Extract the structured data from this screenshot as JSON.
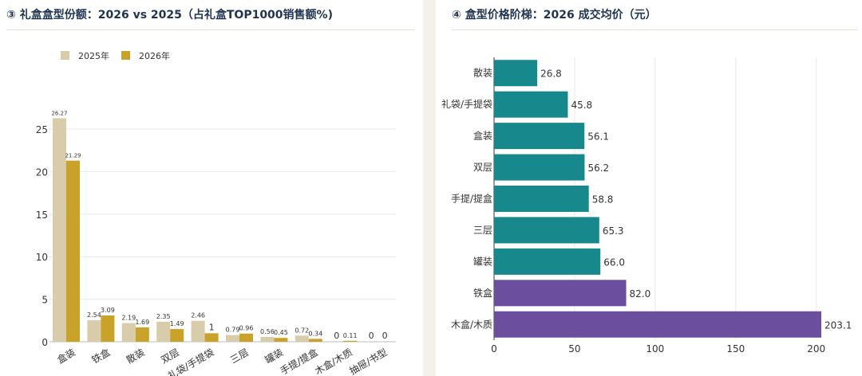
{
  "panels": {
    "left_title": "③ 礼盒盒型份额：2026 vs 2025（占礼盒TOP1000销售额%)",
    "right_title": "④ 盒型价格阶梯：2026 成交均价（元）"
  },
  "chart_data": [
    {
      "type": "bar",
      "orientation": "vertical",
      "categories": [
        "盒装",
        "铁盒",
        "散装",
        "双层",
        "礼袋/手提袋",
        "三层",
        "罐装",
        "手提/提盒",
        "木盒/木质",
        "抽屉/书型"
      ],
      "series": [
        {
          "name": "2025年",
          "color": "#d9ccaa",
          "values": [
            26.27,
            2.54,
            2.19,
            2.35,
            2.46,
            0.79,
            0.56,
            0.72,
            0,
            0
          ]
        },
        {
          "name": "2026年",
          "color": "#c9a22a",
          "values": [
            21.29,
            3.09,
            1.69,
            1.49,
            1,
            0.96,
            0.45,
            0.34,
            0.11,
            0
          ]
        }
      ],
      "data_labels": [
        [
          "26.27",
          "2.54",
          "2.19",
          "2.35",
          "2.46",
          "0.79",
          "0.56",
          "0.72",
          "0",
          "0"
        ],
        [
          "21.29",
          "3.09",
          "1.69",
          "1.49",
          "1",
          "0.96",
          "0.45",
          "0.34",
          "0.11",
          "0"
        ]
      ],
      "yticks": [
        "0",
        "5",
        "10",
        "15",
        "20",
        "25"
      ],
      "ylim": [
        0,
        28
      ],
      "legend": "top-left",
      "grid": true
    },
    {
      "type": "bar",
      "orientation": "horizontal",
      "categories": [
        "散装",
        "礼袋/手提袋",
        "盒装",
        "双层",
        "手提/提盒",
        "三层",
        "罐装",
        "铁盒",
        "木盒/木质"
      ],
      "values": [
        26.8,
        45.8,
        56.1,
        56.2,
        58.8,
        65.3,
        66.0,
        82.0,
        203.1
      ],
      "data_labels": [
        "26.8",
        "45.8",
        "56.1",
        "56.2",
        "58.8",
        "65.3",
        "66.0",
        "82.0",
        "203.1"
      ],
      "colors": [
        "#17898c",
        "#17898c",
        "#17898c",
        "#17898c",
        "#17898c",
        "#17898c",
        "#17898c",
        "#6b4f9e",
        "#6b4f9e"
      ],
      "xticks": [
        "0",
        "50",
        "100",
        "150",
        "200"
      ],
      "xlim": [
        0,
        203.1
      ],
      "grid": true
    }
  ]
}
